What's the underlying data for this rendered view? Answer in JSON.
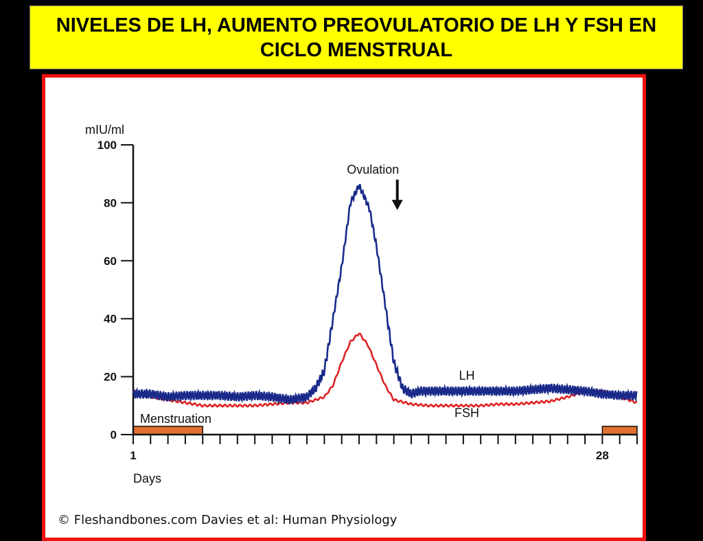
{
  "header": {
    "title": "NIVELES DE LH, AUMENTO PREOVULATORIO DE LH Y FSH EN CICLO MENSTRUAL"
  },
  "colors": {
    "title_bg": "#ffff00",
    "frame_border": "#ee1111",
    "lh": "#1a2a8a",
    "fsh": "#dd2222",
    "menstruation": "#e07030"
  },
  "chart_data": {
    "type": "line",
    "ylabel": "mIU/ml",
    "xlabel": "Days",
    "ylim": [
      0,
      100
    ],
    "xlim": [
      1,
      30
    ],
    "y_ticks": [
      "0",
      "20",
      "40",
      "60",
      "80",
      "100"
    ],
    "x_tick_labels": [
      {
        "x": 1,
        "label": "1"
      },
      {
        "x": 28,
        "label": "28"
      }
    ],
    "series": [
      {
        "name": "LH",
        "x": [
          1,
          2,
          3,
          4,
          5,
          6,
          7,
          8,
          9,
          10,
          11,
          11.5,
          12,
          12.5,
          13,
          13.5,
          14,
          14.3,
          14.6,
          15,
          15.5,
          16,
          16.5,
          17,
          17.5,
          18,
          19,
          20,
          21,
          22,
          23,
          24,
          25,
          26,
          27,
          28,
          29,
          30
        ],
        "values": [
          14,
          14,
          13,
          13.5,
          13.5,
          13.5,
          13,
          13.5,
          13,
          12,
          13,
          16,
          22,
          40,
          58,
          80,
          86,
          82,
          78,
          65,
          45,
          25,
          16,
          14,
          15,
          15,
          15,
          15,
          15,
          15,
          15,
          15.5,
          16,
          15.5,
          15,
          14,
          13.5,
          13.5
        ]
      },
      {
        "name": "FSH",
        "x": [
          1,
          2,
          3,
          4,
          5,
          6,
          7,
          8,
          9,
          10,
          11,
          12,
          12.5,
          13,
          13.5,
          14,
          14.5,
          15,
          15.5,
          16,
          17,
          18,
          19,
          20,
          21,
          22,
          23,
          24,
          25,
          26,
          27,
          28,
          29,
          30
        ],
        "values": [
          15,
          13,
          12,
          11,
          10,
          10,
          10,
          10,
          10.5,
          11,
          11,
          13,
          17,
          25,
          32,
          35,
          31,
          24,
          17,
          12,
          10.5,
          10,
          10,
          10,
          10,
          10.5,
          10.5,
          11,
          11.5,
          13,
          15,
          15,
          13,
          11
        ]
      }
    ],
    "annotations": [
      {
        "text": "Ovulation",
        "x": 14.8,
        "y": 90
      },
      {
        "text": "LH",
        "x": 20.2,
        "y": 19
      },
      {
        "text": "FSH",
        "x": 20.2,
        "y": 6
      },
      {
        "text": "Menstruation",
        "x": 1,
        "y": 4
      }
    ],
    "menstruation_bands": [
      [
        1,
        5
      ],
      [
        28,
        31
      ]
    ]
  },
  "credit": {
    "text": "© Fleshandbones.com Davies et al: Human Physiology"
  }
}
